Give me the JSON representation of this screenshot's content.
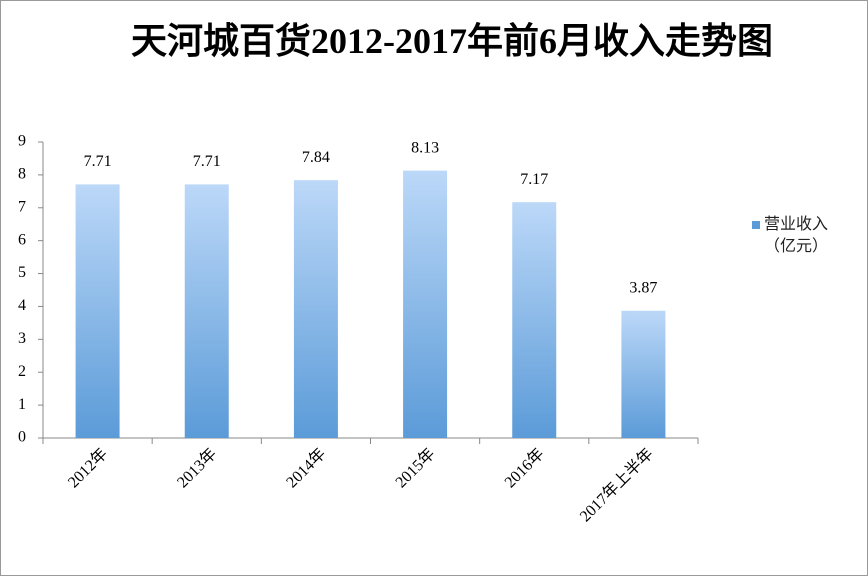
{
  "chart_data": {
    "type": "bar",
    "title": "天河城百货2012-2017年前6月收入走势图",
    "categories": [
      "2012年",
      "2013年",
      "2014年",
      "2015年",
      "2016年",
      "2017年上半年"
    ],
    "series": [
      {
        "name": "营业收入（亿元）",
        "color": "#5b9bd8",
        "values": [
          7.71,
          7.71,
          7.84,
          8.13,
          7.17,
          3.87
        ]
      }
    ],
    "ylim": [
      0,
      9
    ],
    "yticks": [
      0,
      1,
      2,
      3,
      4,
      5,
      6,
      7,
      8,
      9
    ],
    "grid": false,
    "legend": "right"
  }
}
